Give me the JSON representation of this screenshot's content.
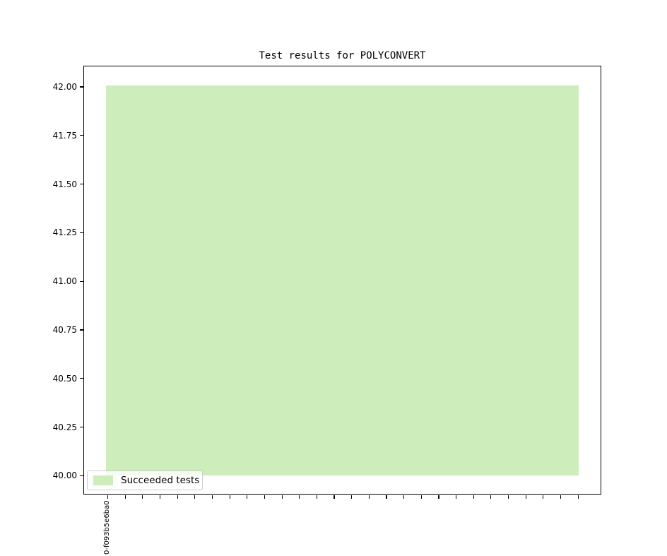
{
  "title": "Test results for POLYCONVERT",
  "colors": {
    "bar_green": "#cdedbb",
    "axis": "#000000",
    "legend_border": "#cccccc",
    "background": "#ffffff"
  },
  "legend": {
    "label": "Succeeded tests",
    "position": "lower left"
  },
  "y_axis": {
    "tick_labels": [
      "42.00",
      "41.75",
      "41.50",
      "41.25",
      "41.00",
      "40.75",
      "40.50",
      "40.25",
      "40.00"
    ]
  },
  "x_axis": {
    "tick_count": 28,
    "first_tick_label": "0-f093b5e6ba0"
  },
  "chart_data": {
    "type": "bar",
    "title": "Test results for POLYCONVERT",
    "categories": [
      "0-f093b5e6ba0"
    ],
    "series": [
      {
        "name": "Succeeded tests",
        "values": [
          42
        ],
        "baseline": 40,
        "color": "#cdedbb"
      }
    ],
    "xlabel": "",
    "ylabel": "",
    "ylim": [
      39.9,
      42.1
    ],
    "yticks": [
      42.0,
      41.75,
      41.5,
      41.25,
      41.0,
      40.75,
      40.5,
      40.25,
      40.0
    ],
    "x_tick_count": 28,
    "x_tick_labels_visible": [
      "0-f093b5e6ba0"
    ],
    "bar_spans_all_tick_positions": true,
    "legend_position": "lower left",
    "grid": false
  }
}
